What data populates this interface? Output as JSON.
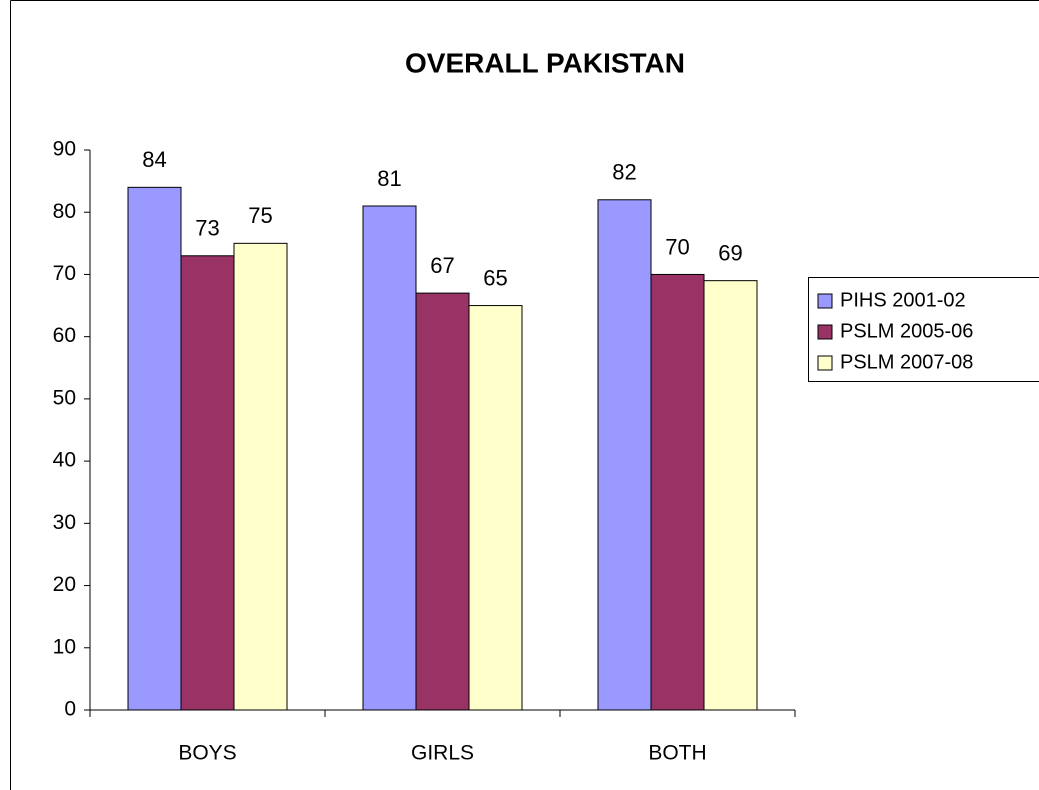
{
  "chart_data": {
    "type": "bar",
    "title": "OVERALL PAKISTAN",
    "categories": [
      "BOYS",
      "GIRLS",
      "BOTH"
    ],
    "series": [
      {
        "name": "PIHS 2001-02",
        "color": "#9999ff",
        "values": [
          84,
          81,
          82
        ]
      },
      {
        "name": "PSLM 2005-06",
        "color": "#993366",
        "values": [
          73,
          67,
          70
        ]
      },
      {
        "name": "PSLM 2007-08",
        "color": "#ffffcc",
        "values": [
          75,
          65,
          69
        ]
      }
    ],
    "ylim": [
      0,
      90
    ],
    "yticks": [
      0,
      10,
      20,
      30,
      40,
      50,
      60,
      70,
      80,
      90
    ],
    "grid": false,
    "legend": "right"
  }
}
